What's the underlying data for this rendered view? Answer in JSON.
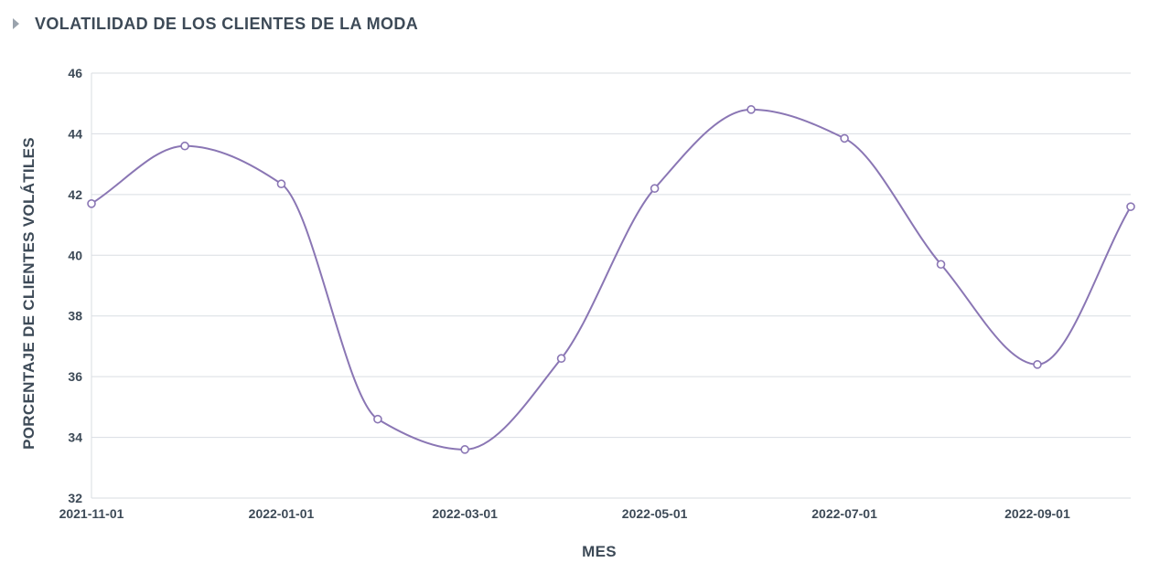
{
  "panel": {
    "title": "VOLATILIDAD DE LOS CLIENTES DE LA MODA",
    "toggle_icon": "caret-right-icon"
  },
  "chart_data": {
    "type": "line",
    "title": "VOLATILIDAD DE LOS CLIENTES DE LA MODA",
    "xlabel": "MES",
    "ylabel": "PORCENTAJE DE CLIENTES VOLÁTILES",
    "x": [
      "2021-11-01",
      "2021-12-01",
      "2022-01-01",
      "2022-02-01",
      "2022-03-01",
      "2022-04-01",
      "2022-05-01",
      "2022-06-01",
      "2022-07-01",
      "2022-08-01",
      "2022-09-01",
      "2022-10-01"
    ],
    "xtick_labels": [
      "2021-11-01",
      "2022-01-01",
      "2022-03-01",
      "2022-05-01",
      "2022-07-01",
      "2022-09-01"
    ],
    "series": [
      {
        "values": [
          41.7,
          43.6,
          42.35,
          34.6,
          33.6,
          36.6,
          42.2,
          44.8,
          43.85,
          39.7,
          36.4,
          41.6
        ]
      }
    ],
    "ylim": [
      32,
      46
    ],
    "yticks": [
      32,
      34,
      36,
      38,
      40,
      42,
      44,
      46
    ],
    "grid": true,
    "line_color": "#8a76b4",
    "curve": "smooth",
    "markers": true
  }
}
